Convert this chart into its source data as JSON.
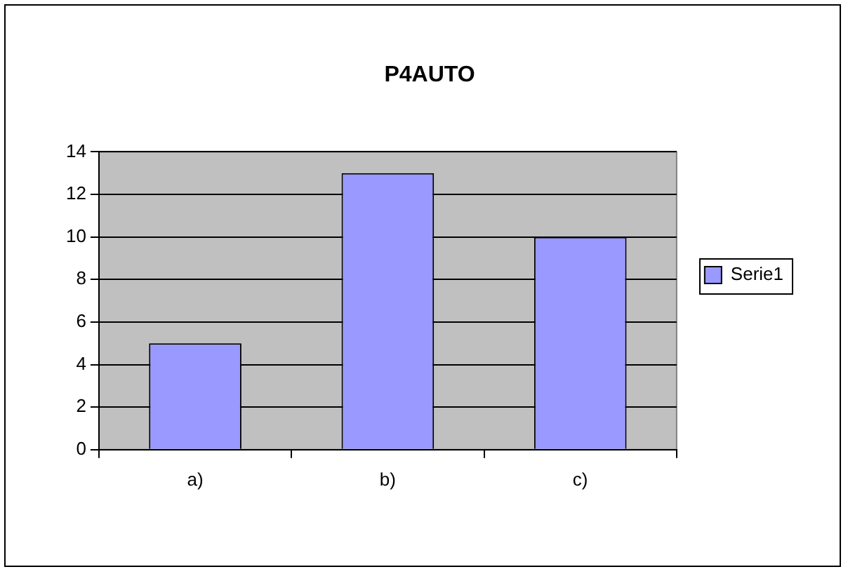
{
  "chart_data": {
    "type": "bar",
    "title": "P4AUTO",
    "categories": [
      "a)",
      "b)",
      "c)"
    ],
    "series": [
      {
        "name": "Serie1",
        "color": "#9999ff",
        "values": [
          5,
          13,
          10
        ]
      }
    ],
    "ylim": [
      0,
      14
    ],
    "yticks": [
      0,
      2,
      4,
      6,
      8,
      10,
      12,
      14
    ],
    "grid": "y",
    "legend": "right"
  }
}
